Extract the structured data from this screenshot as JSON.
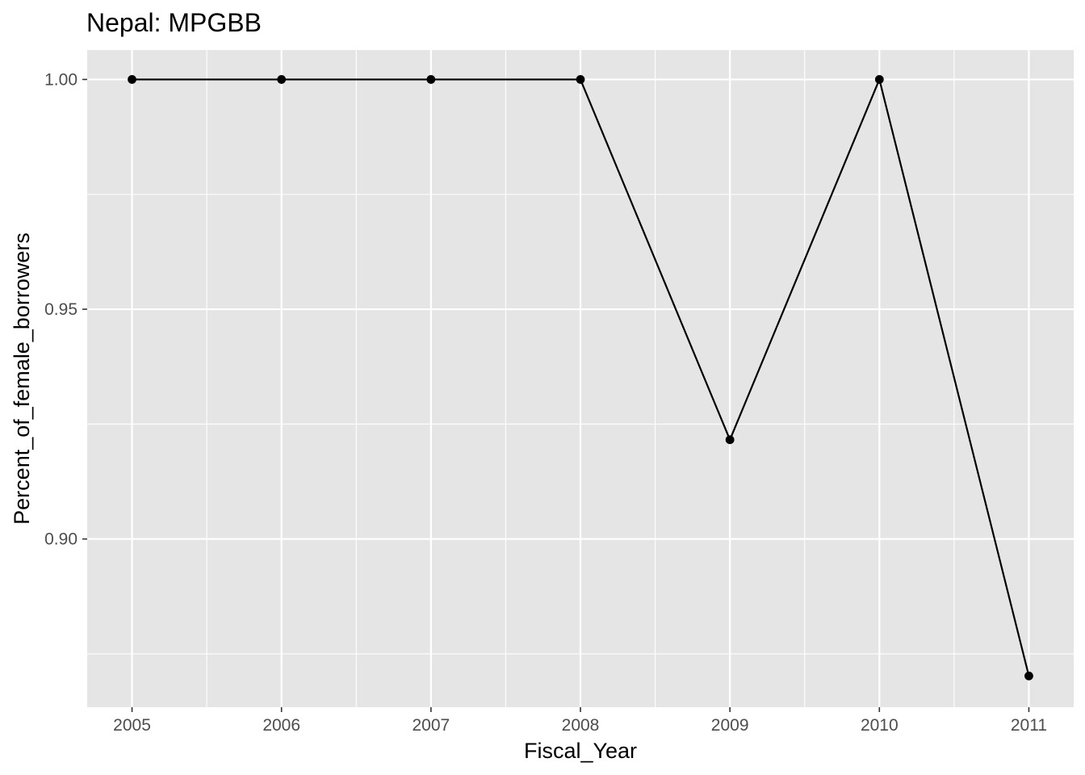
{
  "chart_data": {
    "type": "line",
    "title": "Nepal:  MPGBB",
    "xlabel": "Fiscal_Year",
    "ylabel": "Percent_of_female_borrowers",
    "x": [
      2005,
      2006,
      2007,
      2008,
      2009,
      2010,
      2011
    ],
    "x_tick_labels": [
      "2005",
      "2006",
      "2007",
      "2008",
      "2009",
      "2010",
      "2011"
    ],
    "series": [
      {
        "values": [
          1.0,
          1.0,
          1.0,
          1.0,
          0.9216,
          1.0,
          0.8702
        ]
      }
    ],
    "y_ticks": [
      0.9,
      0.95,
      1.0
    ],
    "y_tick_labels": [
      "0.90",
      "0.95",
      "1.00"
    ],
    "xlim": [
      2004.7,
      2011.3
    ],
    "ylim": [
      0.8634,
      1.0064
    ],
    "grid": true,
    "legend": "none",
    "colors": {
      "panel_background": "#e5e5e5",
      "grid_line": "#ffffff",
      "line": "#000000",
      "point": "#000000",
      "tick_text": "#4d4d4d",
      "title_text": "#000000"
    }
  }
}
